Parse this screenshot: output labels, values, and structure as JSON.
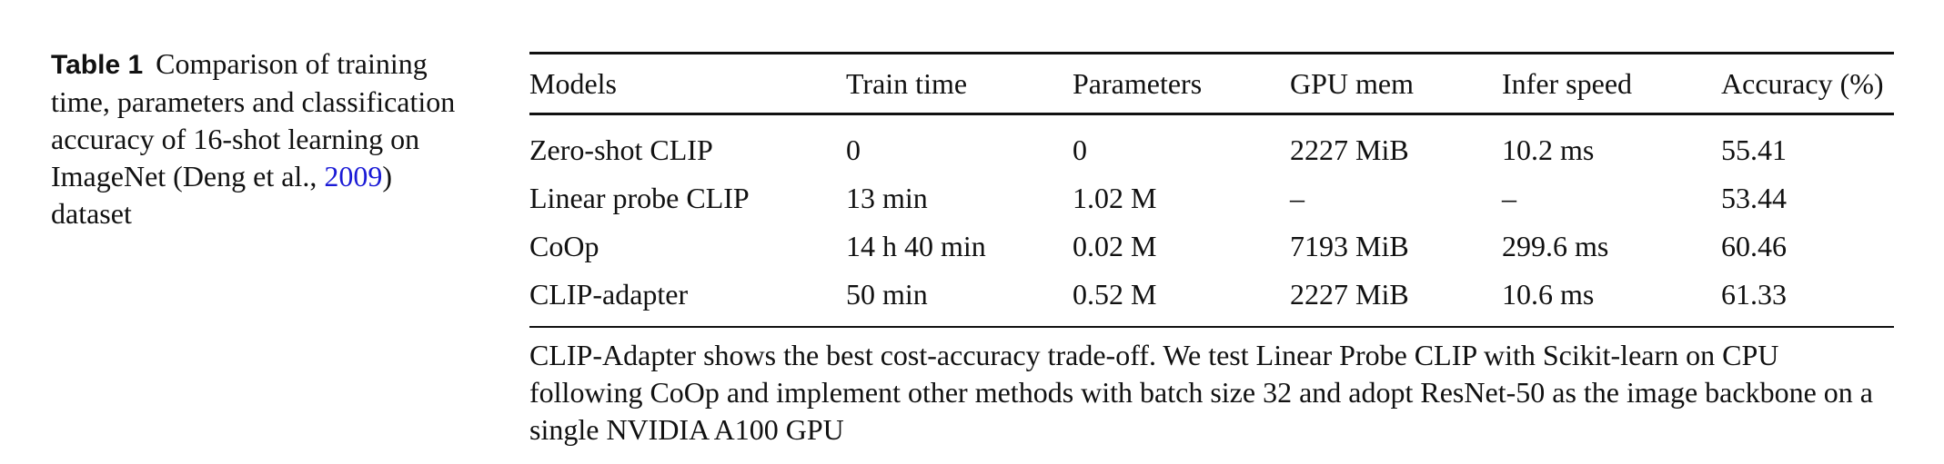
{
  "caption": {
    "label": "Table 1",
    "text_before_citation": "Comparison of training time, parameters and classification accuracy of 16-shot learning on ImageNet (Deng et al., ",
    "citation_year": "2009",
    "text_after_citation": ") dataset"
  },
  "table": {
    "headers": [
      "Models",
      "Train time",
      "Parameters",
      "GPU mem",
      "Infer speed",
      "Accuracy (%)"
    ],
    "rows": [
      [
        "Zero-shot CLIP",
        "0",
        "0",
        "2227 MiB",
        "10.2 ms",
        "55.41"
      ],
      [
        "Linear probe CLIP",
        "13 min",
        "1.02 M",
        "–",
        "–",
        "53.44"
      ],
      [
        "CoOp",
        "14 h 40 min",
        "0.02 M",
        "7193 MiB",
        "299.6 ms",
        "60.46"
      ],
      [
        "CLIP-adapter",
        "50 min",
        "0.52 M",
        "2227 MiB",
        "10.6 ms",
        "61.33"
      ]
    ]
  },
  "footnote": "CLIP-Adapter shows the best cost-accuracy trade-off. We test Linear Probe CLIP with Scikit-learn on CPU following CoOp and implement other methods with batch size 32 and adopt ResNet-50 as the image backbone on a single NVIDIA A100 GPU"
}
